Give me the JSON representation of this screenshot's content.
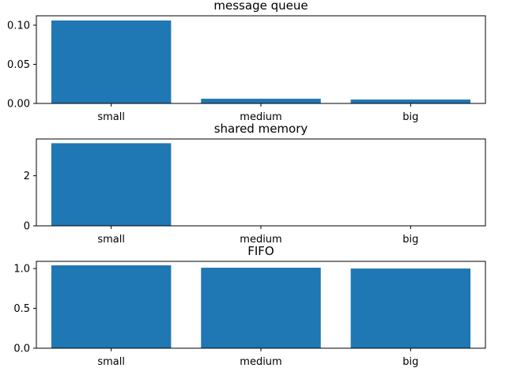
{
  "chart_data": [
    {
      "type": "bar",
      "title": "message queue",
      "categories": [
        "small",
        "medium",
        "big"
      ],
      "values": [
        0.106,
        0.006,
        0.005
      ],
      "ylim": [
        0,
        0.112
      ],
      "yticks": [
        0.0,
        0.05,
        0.1
      ],
      "ytick_labels": [
        "0.00",
        "0.05",
        "0.10"
      ],
      "xlabel": "",
      "ylabel": "",
      "bar_color": "#1f77b4",
      "grid": false
    },
    {
      "type": "bar",
      "title": "shared memory",
      "categories": [
        "small",
        "medium",
        "big"
      ],
      "values": [
        3.3,
        0.0,
        0.0
      ],
      "ylim": [
        0,
        3.47
      ],
      "yticks": [
        0,
        2
      ],
      "ytick_labels": [
        "0",
        "2"
      ],
      "xlabel": "",
      "ylabel": "",
      "bar_color": "#1f77b4",
      "grid": false
    },
    {
      "type": "bar",
      "title": "FIFO",
      "categories": [
        "small",
        "medium",
        "big"
      ],
      "values": [
        1.04,
        1.01,
        1.0
      ],
      "ylim": [
        0,
        1.09
      ],
      "yticks": [
        0.0,
        0.5,
        1.0
      ],
      "ytick_labels": [
        "0.0",
        "0.5",
        "1.0"
      ],
      "xlabel": "",
      "ylabel": "",
      "bar_color": "#1f77b4",
      "grid": false
    }
  ]
}
